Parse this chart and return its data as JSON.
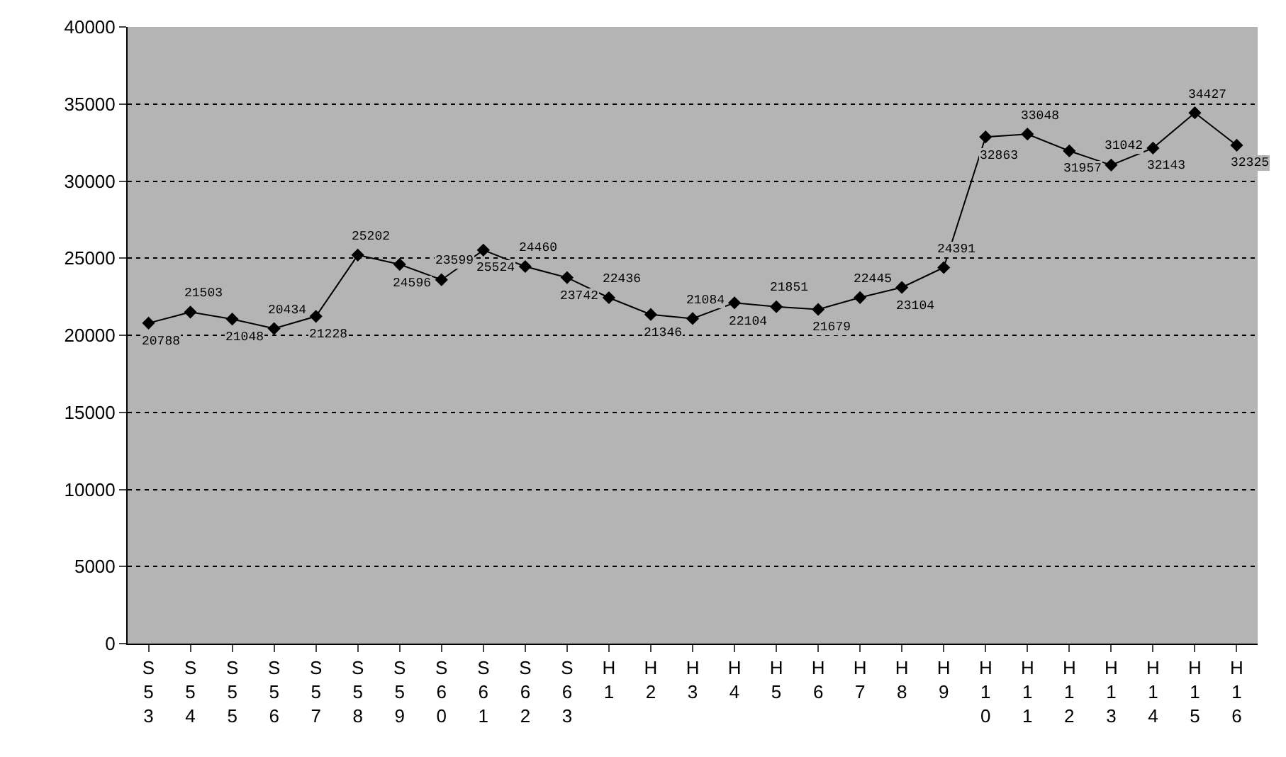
{
  "chart_data": {
    "type": "line",
    "categories": [
      "S53",
      "S54",
      "S55",
      "S56",
      "S57",
      "S58",
      "S59",
      "S60",
      "S61",
      "S62",
      "S63",
      "H1",
      "H2",
      "H3",
      "H4",
      "H5",
      "H6",
      "H7",
      "H8",
      "H9",
      "H10",
      "H11",
      "H12",
      "H13",
      "H14",
      "H15",
      "H16"
    ],
    "series": [
      {
        "color": "#000000",
        "values": [
          20788,
          21503,
          21048,
          20434,
          21228,
          25202,
          24596,
          23599,
          25524,
          24460,
          23742,
          22436,
          21346,
          21084,
          22104,
          21851,
          21679,
          22445,
          23104,
          24391,
          32863,
          33048,
          31957,
          31042,
          32143,
          34427,
          32325
        ]
      }
    ],
    "ylim": [
      0,
      40000
    ],
    "yticks": [
      0,
      5000,
      10000,
      15000,
      20000,
      25000,
      30000,
      35000,
      40000
    ],
    "grid": "y",
    "marker": "diamond",
    "line_style": "solid",
    "data_labels": true,
    "legend": false
  }
}
